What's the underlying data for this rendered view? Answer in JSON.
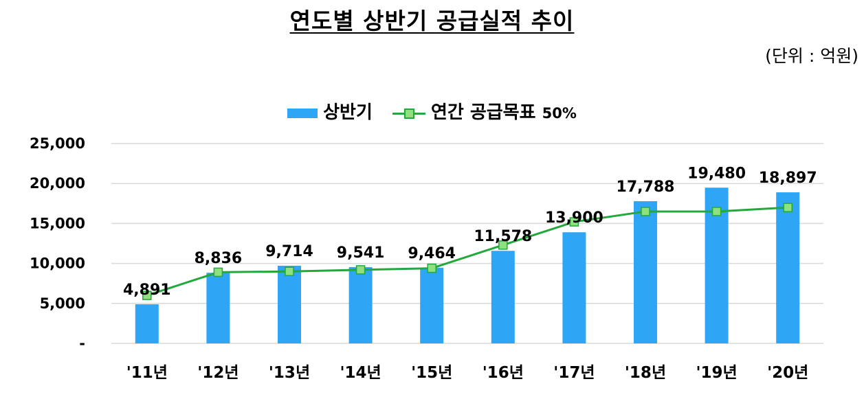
{
  "title": "연도별 상반기 공급실적 추이",
  "unit": "(단위 : 억원)",
  "chart_data": {
    "type": "bar",
    "title": "연도별 상반기 공급실적 추이",
    "xlabel": "",
    "ylabel": "",
    "ylim": [
      0,
      25000
    ],
    "yticks": [
      0,
      5000,
      10000,
      15000,
      20000,
      25000
    ],
    "ytick_labels": [
      "-",
      "5,000",
      "10,000",
      "15,000",
      "20,000",
      "25,000"
    ],
    "grid": true,
    "legend_position": "top-center",
    "categories": [
      "'11년",
      "'12년",
      "'13년",
      "'14년",
      "'15년",
      "'16년",
      "'17년",
      "'18년",
      "'19년",
      "'20년"
    ],
    "series": [
      {
        "name": "상반기",
        "type": "bar",
        "color": "#2ea6f5",
        "values": [
          4891,
          8836,
          9714,
          9541,
          9464,
          11578,
          13900,
          17788,
          19480,
          18897
        ],
        "labels": [
          "4,891",
          "8,836",
          "9,714",
          "9,541",
          "9,464",
          "11,578",
          "13,900",
          "17,788",
          "19,480",
          "18,897"
        ]
      },
      {
        "name": "연간 공급목표",
        "name_suffix": "50%",
        "type": "line",
        "color": "#22a83c",
        "marker_color": "#8fe07e",
        "values": [
          6000,
          8900,
          9000,
          9200,
          9400,
          12300,
          15200,
          16500,
          16500,
          17000
        ]
      }
    ]
  }
}
